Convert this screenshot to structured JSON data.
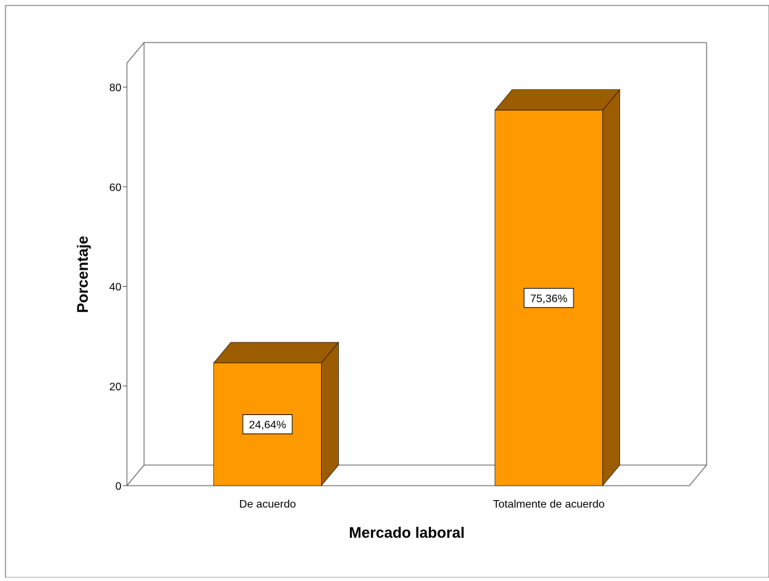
{
  "chart_data": {
    "type": "bar",
    "categories": [
      "De acuerdo",
      "Totalmente de acuerdo"
    ],
    "values": [
      24.64,
      75.36
    ],
    "data_labels": [
      "24,64%",
      "75,36%"
    ],
    "xlabel": "Mercado laboral",
    "ylabel": "Porcentaje",
    "ylim": [
      0,
      80
    ],
    "yticks": [
      0,
      20,
      40,
      60,
      80
    ],
    "ytick_labels": [
      "0",
      "20",
      "40",
      "60",
      "80"
    ],
    "grid": false,
    "three_d": true,
    "colors": {
      "bar_front": "#FF9900",
      "bar_side": "#9C5C00",
      "bar_top": "#9C5C00",
      "frame": "#4d4d4d",
      "background": "#ffffff"
    }
  }
}
